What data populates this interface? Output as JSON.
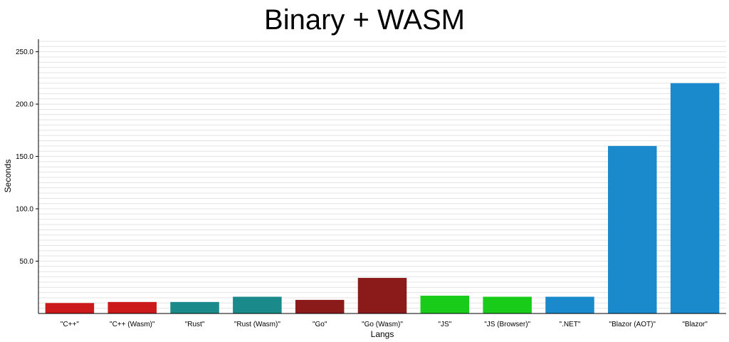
{
  "chart_data": {
    "type": "bar",
    "title": "Binary + WASM",
    "xlabel": "Langs",
    "ylabel": "Seconds",
    "ylim": [
      0,
      262
    ],
    "yticks": [
      50.0,
      100.0,
      150.0,
      200.0,
      250.0
    ],
    "ytick_labels": [
      "50.0",
      "100.0",
      "150.0",
      "200.0",
      "250.0"
    ],
    "grid": "horizontal",
    "categories": [
      "\"C++\"",
      "\"C++ (Wasm)\"",
      "\"Rust\"",
      "\"Rust (Wasm)\"",
      "\"Go\"",
      "\"Go (Wasm)\"",
      "\"JS\"",
      "\"JS (Browser)\"",
      "\".NET\"",
      "\"Blazor (AOT)\"",
      "\"Blazor\""
    ],
    "values": [
      10,
      11,
      11,
      16,
      13,
      34,
      17,
      16,
      16,
      160,
      220
    ],
    "colors": [
      "#cc1a1a",
      "#cc1a1a",
      "#1a8a8a",
      "#1a8a8a",
      "#8b1a1a",
      "#8b1a1a",
      "#1acc1a",
      "#1acc1a",
      "#1a8acc",
      "#1a8acc",
      "#1a8acc"
    ]
  }
}
